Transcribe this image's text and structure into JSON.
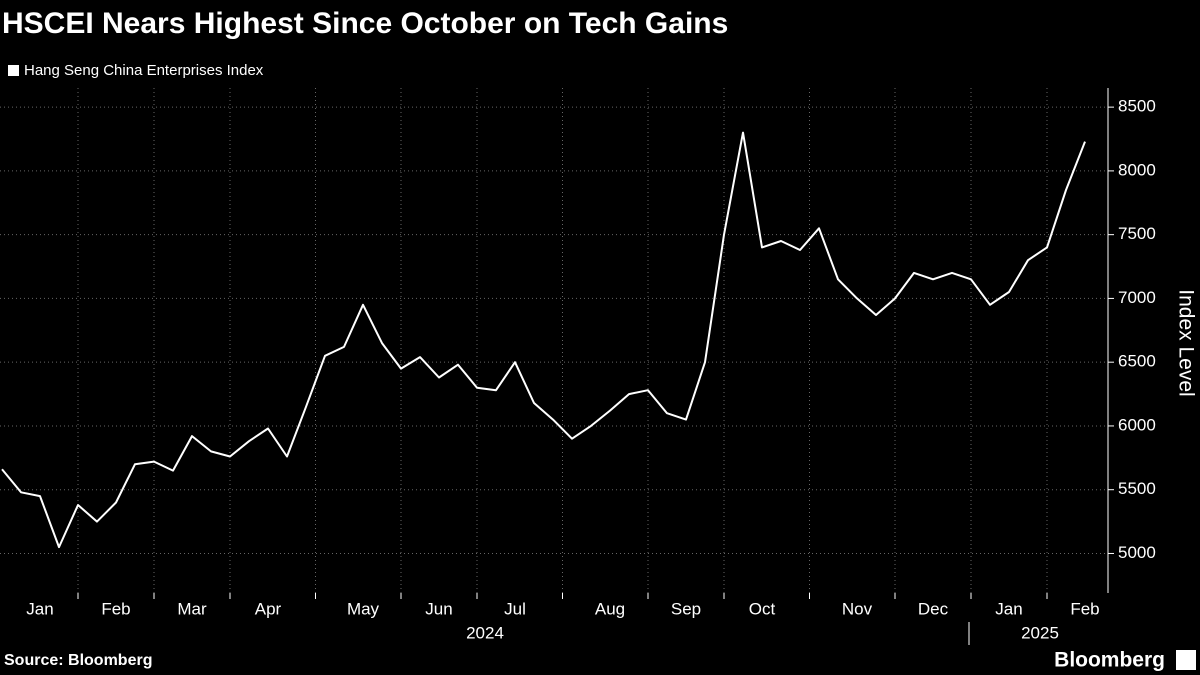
{
  "chart_data": {
    "type": "line",
    "title": "HSCEI Nears Highest Since October on Tech Gains",
    "legend": "Hang Seng China Enterprises Index",
    "y_label": "Index Level",
    "source": "Source: Bloomberg",
    "brand": "Bloomberg",
    "color": "#ffffff",
    "categories": [
      null,
      null,
      "Jan",
      null,
      null,
      null,
      "Feb",
      null,
      null,
      null,
      "Mar",
      null,
      null,
      null,
      "Apr",
      null,
      null,
      null,
      null,
      "May",
      null,
      null,
      null,
      "Jun",
      null,
      null,
      null,
      "Jul",
      null,
      null,
      null,
      null,
      "Aug",
      null,
      null,
      null,
      "Sep",
      null,
      null,
      null,
      "Oct",
      null,
      null,
      null,
      null,
      "Nov",
      null,
      null,
      null,
      "Dec",
      null,
      null,
      null,
      "Jan",
      null,
      null,
      null,
      "Feb"
    ],
    "year_labels": [
      "2024",
      "2025"
    ],
    "values": [
      5660,
      5480,
      5450,
      5050,
      5380,
      5250,
      5400,
      5700,
      5720,
      5650,
      5920,
      5800,
      5760,
      5880,
      5980,
      5760,
      6150,
      6550,
      6620,
      6950,
      6650,
      6450,
      6540,
      6380,
      6480,
      6300,
      6280,
      6500,
      6180,
      6050,
      5900,
      6000,
      6120,
      6250,
      6280,
      6100,
      6050,
      6500,
      7500,
      8300,
      7400,
      7450,
      7380,
      7550,
      7150,
      7000,
      6870,
      7000,
      7200,
      7150,
      7200,
      7150,
      6950,
      7050,
      7300,
      7400,
      7850,
      8230
    ],
    "ylim": [
      4690,
      8650
    ],
    "yticks": [
      5000,
      5500,
      6000,
      6500,
      7000,
      7500,
      8000,
      8500
    ],
    "grid": true
  }
}
